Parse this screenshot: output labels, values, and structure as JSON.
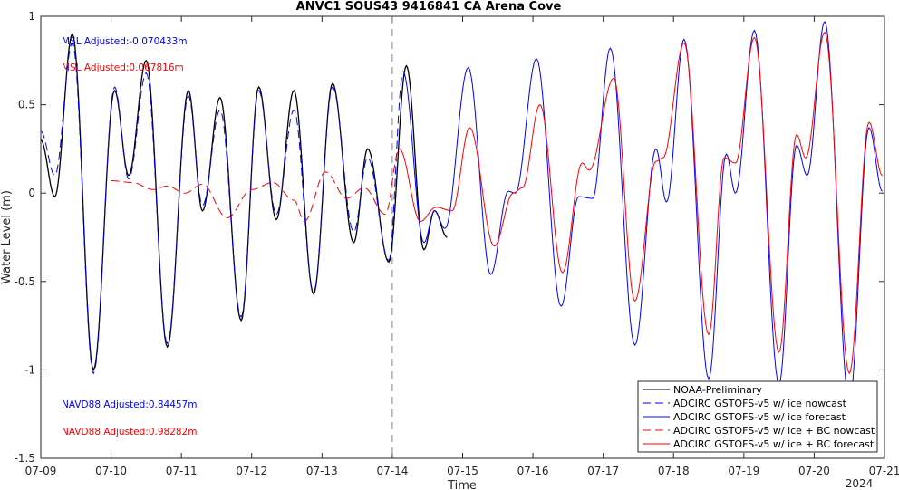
{
  "chart_data": {
    "type": "line",
    "title": "ANVC1 SOUS43 9416841 CA Arena Cove",
    "xlabel": "Time",
    "ylabel": "Water Level (m)",
    "x_year_label": "2024",
    "xlim_days": [
      9,
      21
    ],
    "ylim": [
      -1.5,
      1
    ],
    "x_ticks": [
      "07-09",
      "07-10",
      "07-11",
      "07-12",
      "07-13",
      "07-14",
      "07-15",
      "07-16",
      "07-17",
      "07-18",
      "07-19",
      "07-20",
      "07-21"
    ],
    "y_ticks": [
      "-1.5",
      "-1",
      "-0.5",
      "0",
      "0.5",
      "1"
    ],
    "grid": false,
    "nowcast_forecast_divider": "07-14",
    "annotations": {
      "msl_adjusted_blue": "MSL Adjusted:-0.070433m",
      "msl_adjusted_red": "MSL Adjusted:0.067816m",
      "navd88_adjusted_blue": "NAVD88 Adjusted:0.84457m",
      "navd88_adjusted_red": "NAVD88 Adjusted:0.98282m"
    },
    "legend_position": "bottom-right",
    "series": [
      {
        "name": "NOAA-Preliminary",
        "color": "#000000",
        "style": "solid",
        "extrema": [
          [
            9.0,
            0.3
          ],
          [
            9.2,
            -0.02
          ],
          [
            9.45,
            0.9
          ],
          [
            9.75,
            -1.0
          ],
          [
            10.05,
            0.58
          ],
          [
            10.25,
            0.1
          ],
          [
            10.5,
            0.75
          ],
          [
            10.8,
            -0.87
          ],
          [
            11.1,
            0.58
          ],
          [
            11.3,
            -0.1
          ],
          [
            11.55,
            0.54
          ],
          [
            11.85,
            -0.72
          ],
          [
            12.1,
            0.6
          ],
          [
            12.35,
            -0.15
          ],
          [
            12.6,
            0.58
          ],
          [
            12.88,
            -0.57
          ],
          [
            13.15,
            0.62
          ],
          [
            13.45,
            -0.28
          ],
          [
            13.65,
            0.25
          ],
          [
            13.95,
            -0.39
          ],
          [
            14.2,
            0.72
          ],
          [
            14.45,
            -0.32
          ],
          [
            14.6,
            -0.1
          ],
          [
            14.78,
            -0.25
          ]
        ]
      },
      {
        "name": "ADCIRC GSTOFS-v5 w/ ice nowcast",
        "color": "#0000ff",
        "style": "dashed",
        "extrema": [
          [
            9.0,
            0.35
          ],
          [
            9.2,
            0.1
          ],
          [
            9.45,
            0.85
          ],
          [
            9.75,
            -1.02
          ],
          [
            10.05,
            0.6
          ],
          [
            10.25,
            0.08
          ],
          [
            10.5,
            0.68
          ],
          [
            10.8,
            -0.85
          ],
          [
            11.1,
            0.55
          ],
          [
            11.3,
            -0.07
          ],
          [
            11.55,
            0.47
          ],
          [
            11.85,
            -0.7
          ],
          [
            12.1,
            0.58
          ],
          [
            12.35,
            -0.12
          ],
          [
            12.6,
            0.47
          ],
          [
            12.88,
            -0.56
          ],
          [
            13.15,
            0.6
          ],
          [
            13.45,
            -0.22
          ],
          [
            13.65,
            0.2
          ],
          [
            13.95,
            -0.38
          ],
          [
            14.15,
            0.67
          ]
        ]
      },
      {
        "name": "ADCIRC GSTOFS-v5 w/ ice forecast",
        "color": "#0000ff",
        "style": "solid",
        "extrema": [
          [
            14.15,
            0.69
          ],
          [
            14.45,
            -0.28
          ],
          [
            14.6,
            -0.1
          ],
          [
            14.75,
            -0.2
          ],
          [
            15.08,
            0.71
          ],
          [
            15.4,
            -0.46
          ],
          [
            15.65,
            0.01
          ],
          [
            15.75,
            0.0
          ],
          [
            16.05,
            0.76
          ],
          [
            16.4,
            -0.64
          ],
          [
            16.65,
            -0.02
          ],
          [
            16.85,
            -0.03
          ],
          [
            17.1,
            0.82
          ],
          [
            17.45,
            -0.86
          ],
          [
            17.75,
            0.25
          ],
          [
            17.9,
            -0.05
          ],
          [
            18.15,
            0.87
          ],
          [
            18.5,
            -1.05
          ],
          [
            18.75,
            0.22
          ],
          [
            18.88,
            0.0
          ],
          [
            19.15,
            0.92
          ],
          [
            19.5,
            -1.08
          ],
          [
            19.75,
            0.27
          ],
          [
            19.9,
            0.1
          ],
          [
            20.15,
            0.97
          ],
          [
            20.5,
            -1.18
          ],
          [
            20.78,
            0.37
          ],
          [
            20.97,
            0.01
          ]
        ]
      },
      {
        "name": "ADCIRC GSTOFS-v5 w/ ice + BC nowcast",
        "color": "#ff0000",
        "style": "dashed",
        "extrema": [
          [
            10.0,
            0.07
          ],
          [
            10.3,
            0.06
          ],
          [
            10.6,
            0.02
          ],
          [
            10.8,
            0.04
          ],
          [
            11.05,
            0.0
          ],
          [
            11.3,
            0.05
          ],
          [
            11.65,
            -0.14
          ],
          [
            12.0,
            0.02
          ],
          [
            12.3,
            0.06
          ],
          [
            12.6,
            -0.04
          ],
          [
            12.75,
            -0.16
          ],
          [
            13.05,
            0.12
          ],
          [
            13.35,
            -0.03
          ],
          [
            13.6,
            0.03
          ],
          [
            13.9,
            -0.12
          ],
          [
            14.1,
            0.25
          ]
        ]
      },
      {
        "name": "ADCIRC GSTOFS-v5 w/ ice + BC forecast",
        "color": "#ff0000",
        "style": "solid",
        "extrema": [
          [
            14.1,
            0.25
          ],
          [
            14.4,
            -0.16
          ],
          [
            14.62,
            -0.08
          ],
          [
            14.85,
            -0.1
          ],
          [
            15.1,
            0.37
          ],
          [
            15.45,
            -0.3
          ],
          [
            15.72,
            0.0
          ],
          [
            15.85,
            0.03
          ],
          [
            16.1,
            0.5
          ],
          [
            16.42,
            -0.45
          ],
          [
            16.7,
            0.17
          ],
          [
            16.8,
            0.13
          ],
          [
            17.15,
            0.65
          ],
          [
            17.45,
            -0.61
          ],
          [
            17.75,
            0.18
          ],
          [
            17.85,
            0.2
          ],
          [
            18.15,
            0.85
          ],
          [
            18.5,
            -0.8
          ],
          [
            18.72,
            0.2
          ],
          [
            18.88,
            0.17
          ],
          [
            19.15,
            0.88
          ],
          [
            19.5,
            -0.9
          ],
          [
            19.75,
            0.33
          ],
          [
            19.88,
            0.2
          ],
          [
            20.15,
            0.91
          ],
          [
            20.5,
            -1.02
          ],
          [
            20.78,
            0.4
          ],
          [
            20.97,
            0.1
          ]
        ]
      }
    ]
  }
}
